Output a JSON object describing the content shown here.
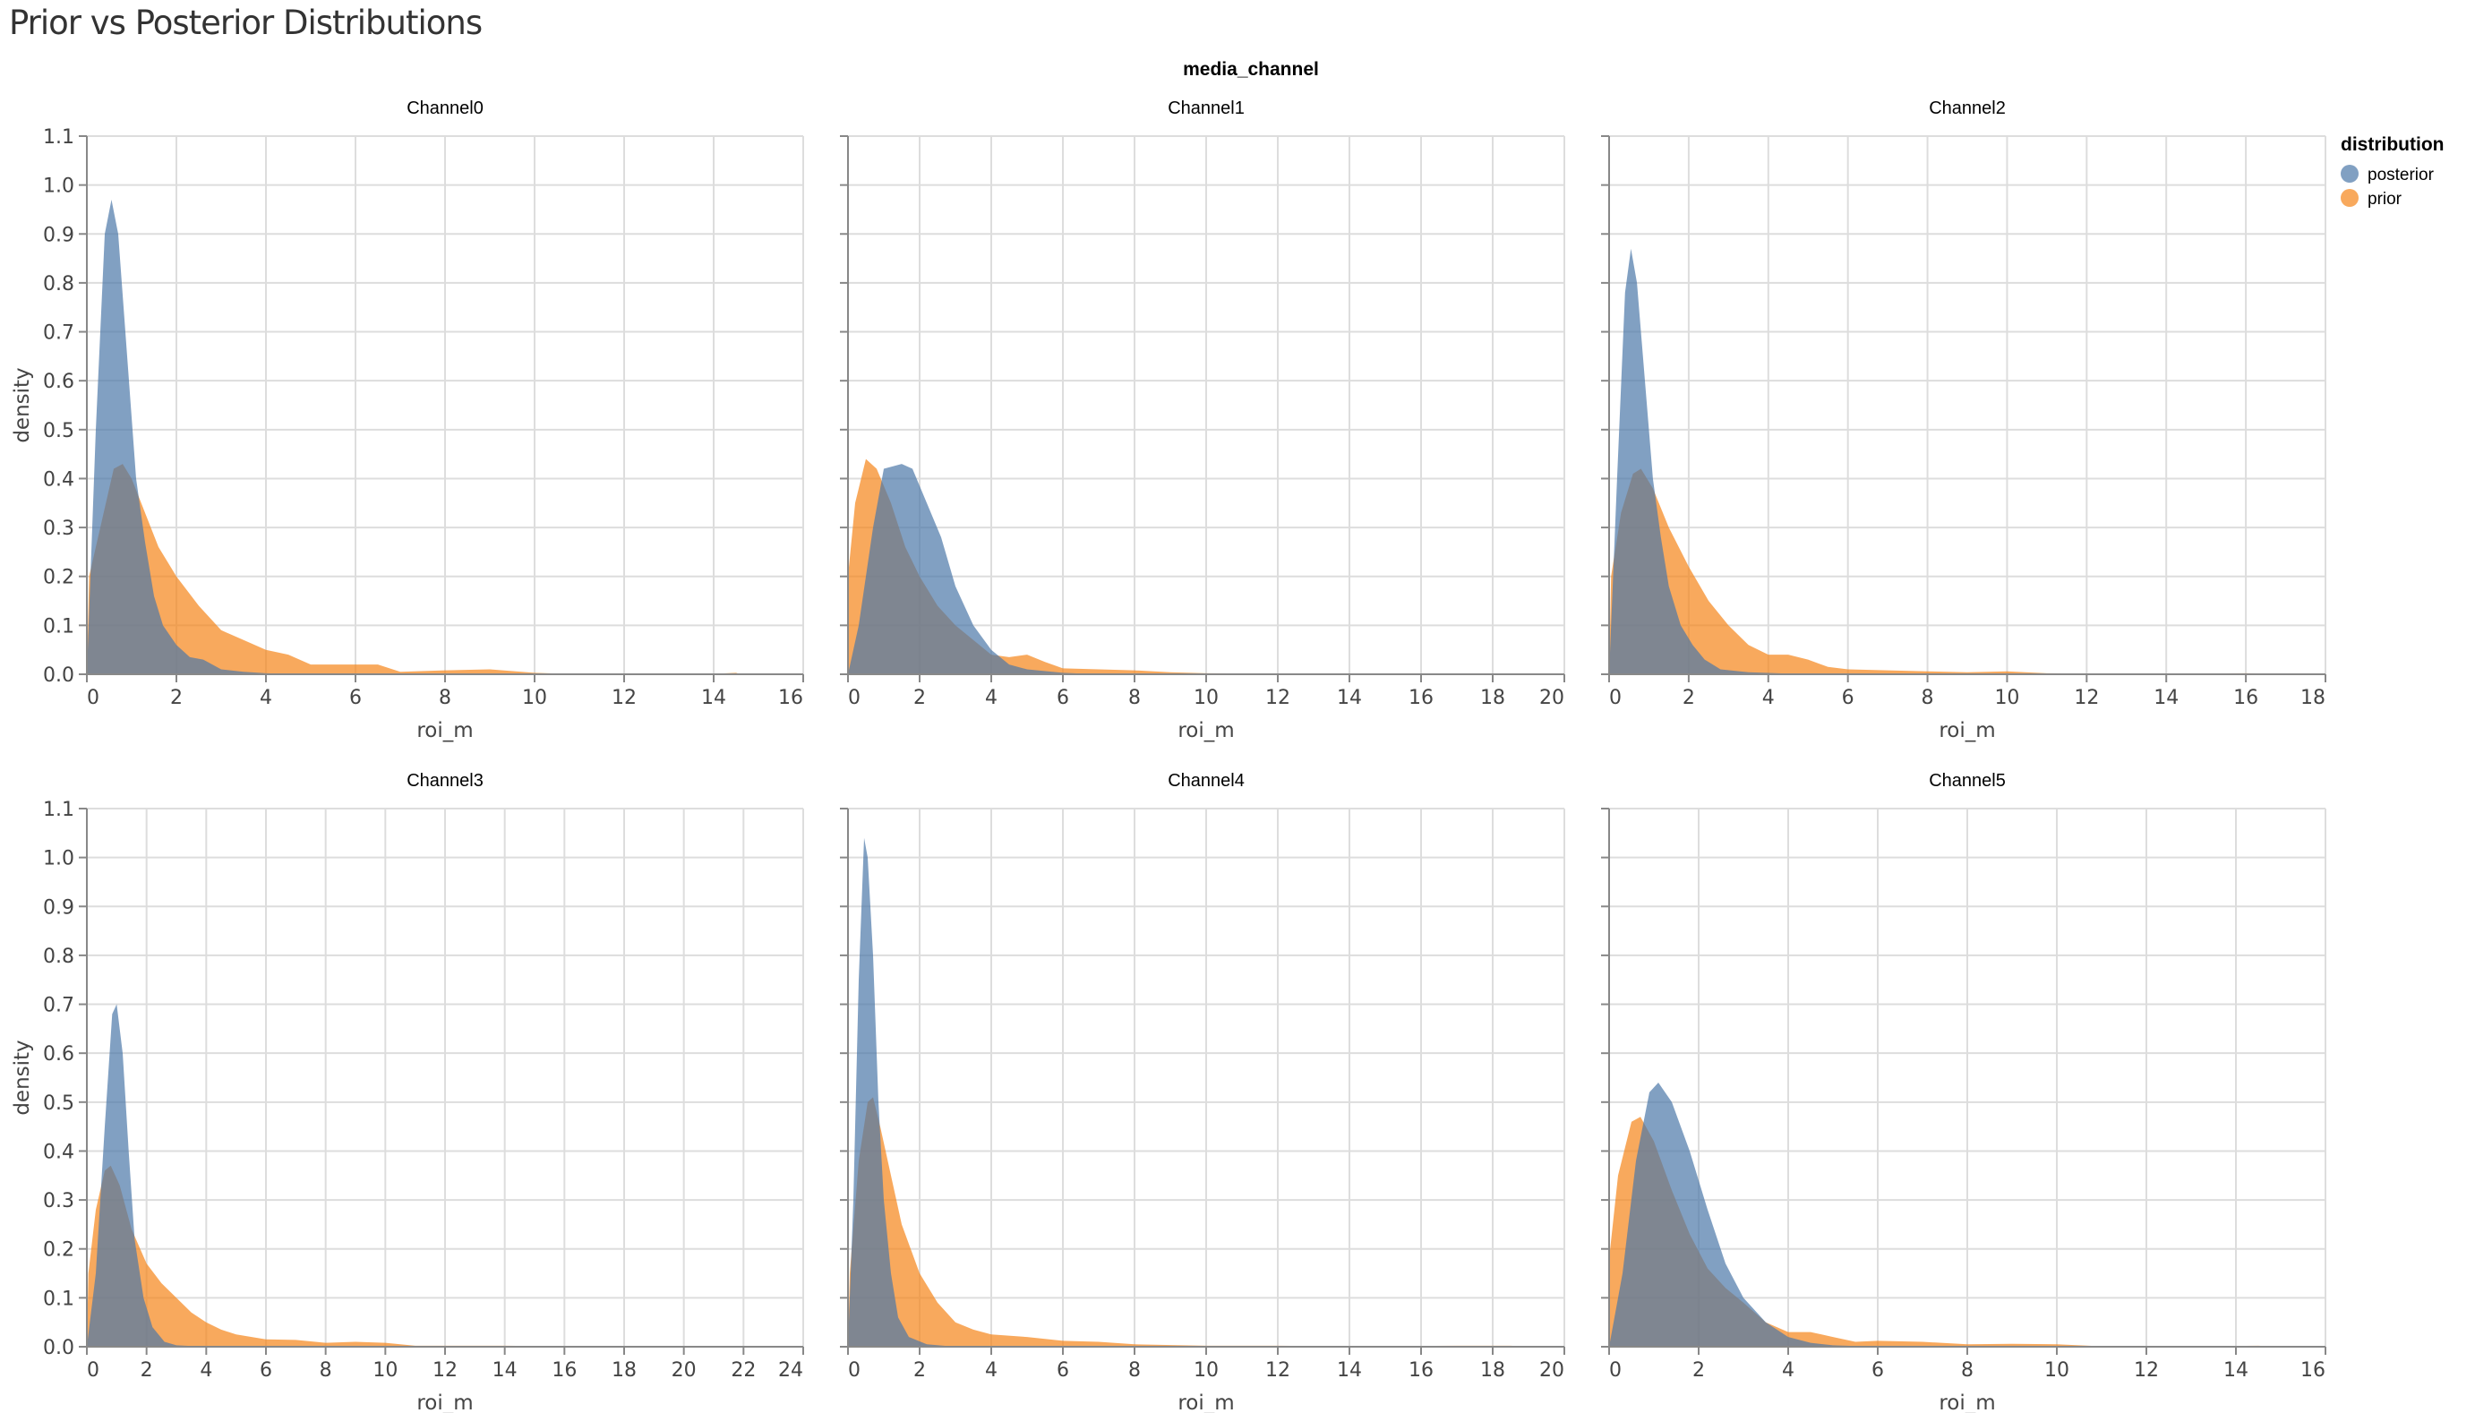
{
  "title": "Prior vs Posterior Distributions",
  "facet_title": "media_channel",
  "legend": {
    "title": "distribution",
    "items": [
      {
        "label": "posterior",
        "color": "#4c78a8"
      },
      {
        "label": "prior",
        "color": "#f58518"
      }
    ]
  },
  "chart_data": [
    {
      "type": "area",
      "title": "Channel0",
      "xlabel": "roi_m",
      "ylabel": "density",
      "xlim": [
        0,
        16
      ],
      "ylim": [
        0,
        1.1
      ],
      "grid": true,
      "x_ticks": [
        "0",
        "2",
        "4",
        "6",
        "8",
        "10",
        "12",
        "14",
        "16"
      ],
      "y_ticks": [
        "0.0",
        "0.1",
        "0.2",
        "0.3",
        "0.4",
        "0.5",
        "0.6",
        "0.7",
        "0.8",
        "0.9",
        "1.0",
        "1.1"
      ],
      "series": [
        {
          "name": "prior",
          "points": [
            [
              0,
              0
            ],
            [
              0.05,
              0.2
            ],
            [
              0.3,
              0.3
            ],
            [
              0.6,
              0.42
            ],
            [
              0.8,
              0.43
            ],
            [
              1.0,
              0.4
            ],
            [
              1.3,
              0.33
            ],
            [
              1.6,
              0.26
            ],
            [
              2,
              0.2
            ],
            [
              2.5,
              0.14
            ],
            [
              3,
              0.09
            ],
            [
              3.5,
              0.07
            ],
            [
              4,
              0.05
            ],
            [
              4.5,
              0.04
            ],
            [
              5,
              0.02
            ],
            [
              6,
              0.02
            ],
            [
              6.5,
              0.02
            ],
            [
              7,
              0.005
            ],
            [
              8,
              0.008
            ],
            [
              9,
              0.01
            ],
            [
              10,
              0.003
            ],
            [
              11,
              0
            ],
            [
              14,
              0.001
            ],
            [
              14.5,
              0.003
            ],
            [
              14.6,
              0
            ]
          ]
        },
        {
          "name": "posterior",
          "points": [
            [
              0,
              0
            ],
            [
              0.2,
              0.5
            ],
            [
              0.4,
              0.9
            ],
            [
              0.55,
              0.97
            ],
            [
              0.7,
              0.9
            ],
            [
              0.9,
              0.65
            ],
            [
              1.1,
              0.4
            ],
            [
              1.3,
              0.27
            ],
            [
              1.5,
              0.16
            ],
            [
              1.7,
              0.1
            ],
            [
              2,
              0.06
            ],
            [
              2.3,
              0.035
            ],
            [
              2.6,
              0.03
            ],
            [
              3,
              0.01
            ],
            [
              3.5,
              0.005
            ],
            [
              4,
              0.002
            ],
            [
              5,
              0
            ]
          ]
        }
      ]
    },
    {
      "type": "area",
      "title": "Channel1",
      "xlabel": "roi_m",
      "ylabel": "",
      "xlim": [
        0,
        20
      ],
      "ylim": [
        0,
        1.1
      ],
      "grid": true,
      "x_ticks": [
        "0",
        "2",
        "4",
        "6",
        "8",
        "10",
        "12",
        "14",
        "16",
        "18",
        "20"
      ],
      "y_ticks": [],
      "series": [
        {
          "name": "prior",
          "points": [
            [
              0,
              0.2
            ],
            [
              0.2,
              0.35
            ],
            [
              0.5,
              0.44
            ],
            [
              0.8,
              0.42
            ],
            [
              1.2,
              0.35
            ],
            [
              1.6,
              0.26
            ],
            [
              2,
              0.2
            ],
            [
              2.5,
              0.14
            ],
            [
              3,
              0.1
            ],
            [
              3.5,
              0.07
            ],
            [
              4,
              0.04
            ],
            [
              4.5,
              0.035
            ],
            [
              5,
              0.04
            ],
            [
              5.5,
              0.025
            ],
            [
              6,
              0.012
            ],
            [
              7,
              0.01
            ],
            [
              8,
              0.008
            ],
            [
              9,
              0.004
            ],
            [
              10,
              0.002
            ],
            [
              13,
              0.001
            ],
            [
              20,
              0
            ]
          ]
        },
        {
          "name": "posterior",
          "points": [
            [
              0,
              0
            ],
            [
              0.3,
              0.1
            ],
            [
              0.7,
              0.3
            ],
            [
              1,
              0.42
            ],
            [
              1.5,
              0.43
            ],
            [
              1.8,
              0.42
            ],
            [
              2.2,
              0.35
            ],
            [
              2.6,
              0.28
            ],
            [
              3,
              0.18
            ],
            [
              3.5,
              0.1
            ],
            [
              4,
              0.05
            ],
            [
              4.5,
              0.02
            ],
            [
              5,
              0.01
            ],
            [
              6,
              0.003
            ],
            [
              7,
              0
            ]
          ]
        }
      ]
    },
    {
      "type": "area",
      "title": "Channel2",
      "xlabel": "roi_m",
      "ylabel": "",
      "xlim": [
        0,
        18
      ],
      "ylim": [
        0,
        1.1
      ],
      "grid": true,
      "x_ticks": [
        "0",
        "2",
        "4",
        "6",
        "8",
        "10",
        "12",
        "14",
        "16",
        "18"
      ],
      "y_ticks": [],
      "series": [
        {
          "name": "prior",
          "points": [
            [
              0,
              0
            ],
            [
              0.05,
              0.2
            ],
            [
              0.3,
              0.33
            ],
            [
              0.6,
              0.41
            ],
            [
              0.8,
              0.42
            ],
            [
              1.1,
              0.38
            ],
            [
              1.5,
              0.3
            ],
            [
              2,
              0.22
            ],
            [
              2.5,
              0.15
            ],
            [
              3,
              0.1
            ],
            [
              3.5,
              0.06
            ],
            [
              4,
              0.04
            ],
            [
              4.5,
              0.04
            ],
            [
              5,
              0.03
            ],
            [
              5.5,
              0.015
            ],
            [
              6,
              0.01
            ],
            [
              7,
              0.008
            ],
            [
              8,
              0.006
            ],
            [
              9,
              0.004
            ],
            [
              10,
              0.006
            ],
            [
              11,
              0.002
            ],
            [
              13,
              0.001
            ],
            [
              16,
              0.002
            ],
            [
              18,
              0
            ]
          ]
        },
        {
          "name": "posterior",
          "points": [
            [
              0,
              0
            ],
            [
              0.2,
              0.4
            ],
            [
              0.4,
              0.78
            ],
            [
              0.55,
              0.87
            ],
            [
              0.7,
              0.8
            ],
            [
              0.9,
              0.6
            ],
            [
              1.1,
              0.4
            ],
            [
              1.3,
              0.28
            ],
            [
              1.5,
              0.18
            ],
            [
              1.8,
              0.1
            ],
            [
              2.1,
              0.06
            ],
            [
              2.4,
              0.03
            ],
            [
              2.8,
              0.01
            ],
            [
              3.5,
              0.004
            ],
            [
              5,
              0
            ]
          ]
        }
      ]
    },
    {
      "type": "area",
      "title": "Channel3",
      "xlabel": "roi_m",
      "ylabel": "density",
      "xlim": [
        0,
        24
      ],
      "ylim": [
        0,
        1.1
      ],
      "grid": true,
      "x_ticks": [
        "0",
        "2",
        "4",
        "6",
        "8",
        "10",
        "12",
        "14",
        "16",
        "18",
        "20",
        "22",
        "24"
      ],
      "y_ticks": [
        "0.0",
        "0.1",
        "0.2",
        "0.3",
        "0.4",
        "0.5",
        "0.6",
        "0.7",
        "0.8",
        "0.9",
        "1.0",
        "1.1"
      ],
      "series": [
        {
          "name": "prior",
          "points": [
            [
              0,
              0
            ],
            [
              0.05,
              0.15
            ],
            [
              0.3,
              0.28
            ],
            [
              0.6,
              0.36
            ],
            [
              0.8,
              0.37
            ],
            [
              1.1,
              0.33
            ],
            [
              1.5,
              0.24
            ],
            [
              2,
              0.17
            ],
            [
              2.5,
              0.13
            ],
            [
              3,
              0.1
            ],
            [
              3.5,
              0.07
            ],
            [
              4,
              0.05
            ],
            [
              4.5,
              0.035
            ],
            [
              5,
              0.025
            ],
            [
              6,
              0.015
            ],
            [
              7,
              0.014
            ],
            [
              8,
              0.008
            ],
            [
              9,
              0.01
            ],
            [
              10,
              0.008
            ],
            [
              11,
              0.002
            ],
            [
              14,
              0.002
            ],
            [
              16,
              0.001
            ],
            [
              20,
              0.001
            ],
            [
              22,
              0.001
            ],
            [
              23.5,
              0.001
            ],
            [
              24,
              0
            ]
          ]
        },
        {
          "name": "posterior",
          "points": [
            [
              0,
              0
            ],
            [
              0.3,
              0.15
            ],
            [
              0.6,
              0.45
            ],
            [
              0.85,
              0.68
            ],
            [
              1.0,
              0.7
            ],
            [
              1.2,
              0.6
            ],
            [
              1.4,
              0.4
            ],
            [
              1.6,
              0.22
            ],
            [
              1.9,
              0.1
            ],
            [
              2.2,
              0.04
            ],
            [
              2.6,
              0.01
            ],
            [
              3,
              0.003
            ],
            [
              4,
              0
            ]
          ]
        }
      ]
    },
    {
      "type": "area",
      "title": "Channel4",
      "xlabel": "roi_m",
      "ylabel": "",
      "xlim": [
        0,
        20
      ],
      "ylim": [
        0,
        1.1
      ],
      "grid": true,
      "x_ticks": [
        "0",
        "2",
        "4",
        "6",
        "8",
        "10",
        "12",
        "14",
        "16",
        "18",
        "20"
      ],
      "y_ticks": [],
      "series": [
        {
          "name": "prior",
          "points": [
            [
              0,
              0
            ],
            [
              0.05,
              0.15
            ],
            [
              0.3,
              0.38
            ],
            [
              0.55,
              0.5
            ],
            [
              0.7,
              0.51
            ],
            [
              0.9,
              0.45
            ],
            [
              1.2,
              0.35
            ],
            [
              1.5,
              0.25
            ],
            [
              2,
              0.15
            ],
            [
              2.5,
              0.09
            ],
            [
              3,
              0.05
            ],
            [
              3.5,
              0.035
            ],
            [
              4,
              0.025
            ],
            [
              5,
              0.02
            ],
            [
              6,
              0.012
            ],
            [
              7,
              0.01
            ],
            [
              8,
              0.005
            ],
            [
              10,
              0.002
            ],
            [
              12,
              0.002
            ],
            [
              14,
              0.001
            ],
            [
              17,
              0.002
            ],
            [
              18.5,
              0.002
            ],
            [
              19,
              0
            ]
          ]
        },
        {
          "name": "posterior",
          "points": [
            [
              0,
              0
            ],
            [
              0.15,
              0.3
            ],
            [
              0.3,
              0.75
            ],
            [
              0.45,
              1.04
            ],
            [
              0.55,
              1.0
            ],
            [
              0.7,
              0.8
            ],
            [
              0.85,
              0.5
            ],
            [
              1.0,
              0.3
            ],
            [
              1.2,
              0.15
            ],
            [
              1.4,
              0.06
            ],
            [
              1.7,
              0.02
            ],
            [
              2.2,
              0.005
            ],
            [
              3,
              0
            ]
          ]
        }
      ]
    },
    {
      "type": "area",
      "title": "Channel5",
      "xlabel": "roi_m",
      "ylabel": "",
      "xlim": [
        0,
        16
      ],
      "ylim": [
        0,
        1.1
      ],
      "grid": true,
      "x_ticks": [
        "0",
        "2",
        "4",
        "6",
        "8",
        "10",
        "12",
        "14",
        "16"
      ],
      "y_ticks": [],
      "series": [
        {
          "name": "prior",
          "points": [
            [
              0,
              0.18
            ],
            [
              0.2,
              0.35
            ],
            [
              0.5,
              0.46
            ],
            [
              0.7,
              0.47
            ],
            [
              1.0,
              0.42
            ],
            [
              1.4,
              0.32
            ],
            [
              1.8,
              0.23
            ],
            [
              2.2,
              0.16
            ],
            [
              2.6,
              0.12
            ],
            [
              3,
              0.09
            ],
            [
              3.5,
              0.05
            ],
            [
              4,
              0.03
            ],
            [
              4.5,
              0.03
            ],
            [
              5,
              0.02
            ],
            [
              5.5,
              0.01
            ],
            [
              6,
              0.012
            ],
            [
              7,
              0.01
            ],
            [
              8,
              0.005
            ],
            [
              9,
              0.006
            ],
            [
              10,
              0.005
            ],
            [
              11,
              0.001
            ],
            [
              13,
              0.001
            ],
            [
              14.5,
              0.002
            ],
            [
              15,
              0
            ]
          ]
        },
        {
          "name": "posterior",
          "points": [
            [
              0,
              0
            ],
            [
              0.3,
              0.15
            ],
            [
              0.6,
              0.38
            ],
            [
              0.9,
              0.52
            ],
            [
              1.1,
              0.54
            ],
            [
              1.4,
              0.5
            ],
            [
              1.8,
              0.4
            ],
            [
              2.2,
              0.28
            ],
            [
              2.6,
              0.17
            ],
            [
              3,
              0.1
            ],
            [
              3.5,
              0.05
            ],
            [
              4,
              0.02
            ],
            [
              4.5,
              0.008
            ],
            [
              5,
              0.003
            ],
            [
              6,
              0
            ]
          ]
        }
      ]
    }
  ]
}
